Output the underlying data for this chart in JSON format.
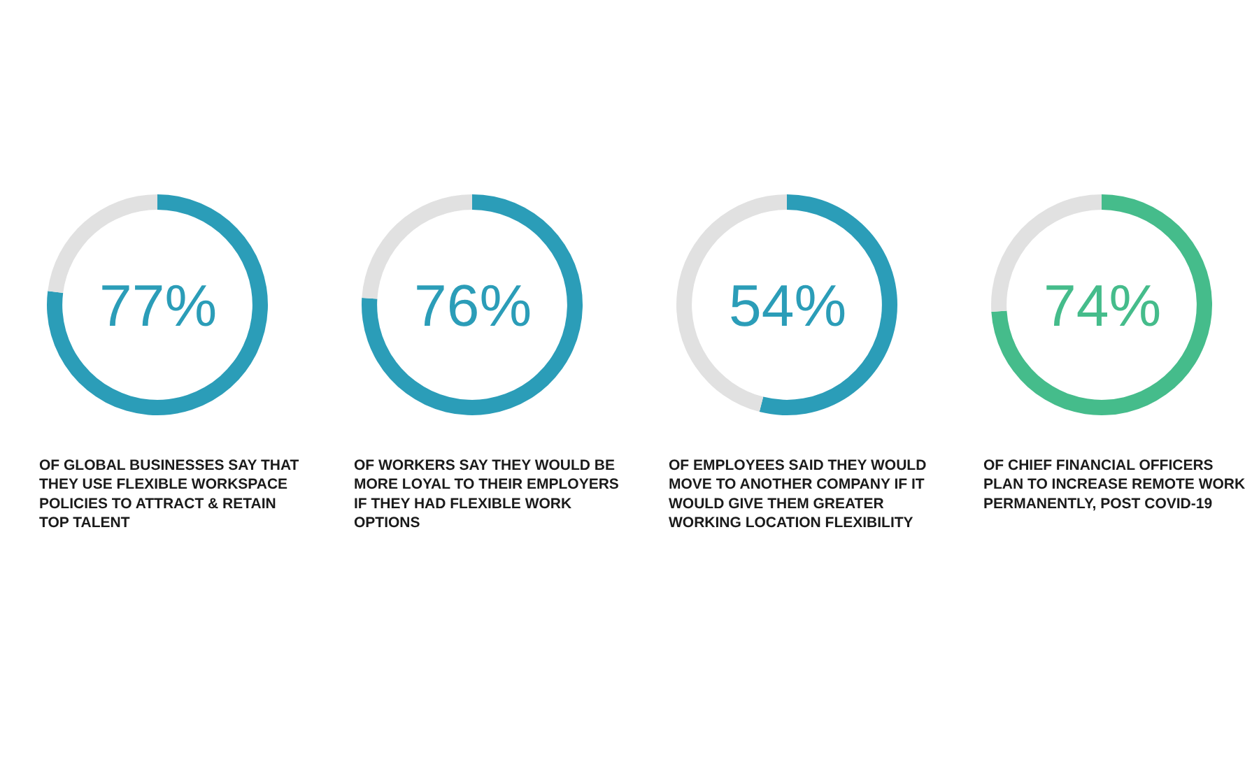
{
  "chart_data": [
    {
      "type": "donut",
      "categories": [
        null,
        null
      ],
      "values": [
        77,
        23
      ],
      "colors": [
        "#2b9db8",
        "#e1e1e1"
      ],
      "value_labels": [
        "77%",
        null
      ],
      "annotations": [
        "OF GLOBAL BUSINESSES SAY THAT THEY USE FLEXIBLE WORKSPACE POLICIES TO ATTRACT & RETAIN TOP TALENT"
      ]
    },
    {
      "type": "donut",
      "categories": [
        null,
        null
      ],
      "values": [
        76,
        24
      ],
      "colors": [
        "#2b9db8",
        "#e1e1e1"
      ],
      "value_labels": [
        "76%",
        null
      ],
      "annotations": [
        "OF WORKERS SAY THEY WOULD BE MORE LOYAL TO THEIR EMPLOYERS IF THEY HAD FLEXIBLE WORK OPTIONS"
      ]
    },
    {
      "type": "donut",
      "categories": [
        null,
        null
      ],
      "values": [
        54,
        46
      ],
      "colors": [
        "#2b9db8",
        "#e1e1e1"
      ],
      "value_labels": [
        "54%",
        null
      ],
      "annotations": [
        "OF EMPLOYEES SAID THEY WOULD MOVE TO ANOTHER COMPANY IF IT WOULD GIVE THEM GREATER WORKING LOCATION FLEXIBILITY"
      ]
    },
    {
      "type": "donut",
      "categories": [
        null,
        null
      ],
      "values": [
        74,
        26
      ],
      "colors": [
        "#45bc8b",
        "#e1e1e1"
      ],
      "value_labels": [
        "74%",
        null
      ],
      "annotations": [
        "OF CHIEF FINANCIAL OFFICERS PLAN TO INCREASE REMOTE WORK PERMANENTLY, POST COVID-19"
      ]
    }
  ]
}
